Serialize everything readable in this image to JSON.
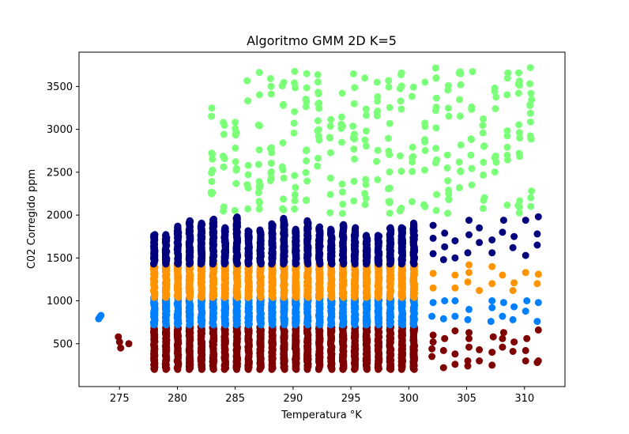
{
  "chart_data": {
    "type": "scatter",
    "title": "Algoritmo GMM 2D K=5",
    "xlabel": "Temperatura °K",
    "ylabel": "C02 Corregido ppm",
    "xlim": [
      271.5,
      313.5
    ],
    "ylim": [
      0,
      3900
    ],
    "xticks": [
      275,
      280,
      285,
      290,
      295,
      300,
      305,
      310
    ],
    "yticks": [
      500,
      1000,
      1500,
      2000,
      2500,
      3000,
      3500
    ],
    "grid": false,
    "legend": "none",
    "marker": "circle",
    "clusters": [
      {
        "color": "#7f0000",
        "description_ranges": {
          "x": [
            274.8,
            311.2
          ],
          "y": [
            200,
            720
          ]
        },
        "dense_x_range": [
          278,
          301
        ],
        "dense_y_range": [
          200,
          700
        ],
        "sparse_points": [
          [
            274.9,
            580
          ],
          [
            275.0,
            520
          ],
          [
            275.1,
            450
          ],
          [
            275.8,
            500
          ],
          [
            302.0,
            350
          ],
          [
            302.0,
            440
          ],
          [
            302.1,
            520
          ],
          [
            302.1,
            600
          ],
          [
            303.0,
            220
          ],
          [
            303.0,
            420
          ],
          [
            303.1,
            560
          ],
          [
            304.0,
            260
          ],
          [
            304.0,
            380
          ],
          [
            304.0,
            650
          ],
          [
            305.1,
            240
          ],
          [
            305.1,
            300
          ],
          [
            305.2,
            460
          ],
          [
            305.2,
            560
          ],
          [
            305.2,
            630
          ],
          [
            306.1,
            300
          ],
          [
            306.1,
            430
          ],
          [
            307.2,
            250
          ],
          [
            307.2,
            400
          ],
          [
            307.3,
            580
          ],
          [
            308.1,
            460
          ],
          [
            308.1,
            560
          ],
          [
            308.2,
            630
          ],
          [
            309.0,
            410
          ],
          [
            309.1,
            520
          ],
          [
            310.1,
            300
          ],
          [
            310.1,
            420
          ],
          [
            310.2,
            560
          ],
          [
            311.1,
            280
          ],
          [
            311.2,
            300
          ],
          [
            311.2,
            660
          ]
        ]
      },
      {
        "color": "#0080ff",
        "description_ranges": {
          "x": [
            273.1,
            311.2
          ],
          "y": [
            720,
            1060
          ]
        },
        "dense_x_range": [
          278,
          301
        ],
        "dense_y_range": [
          720,
          1040
        ],
        "sparse_points": [
          [
            273.2,
            790
          ],
          [
            273.3,
            810
          ],
          [
            273.4,
            830
          ],
          [
            302.0,
            820
          ],
          [
            302.1,
            980
          ],
          [
            303.0,
            790
          ],
          [
            303.1,
            1000
          ],
          [
            304.0,
            820
          ],
          [
            304.0,
            1000
          ],
          [
            305.1,
            780
          ],
          [
            305.2,
            900
          ],
          [
            307.1,
            760
          ],
          [
            307.2,
            920
          ],
          [
            307.2,
            1000
          ],
          [
            308.1,
            820
          ],
          [
            308.2,
            980
          ],
          [
            309.0,
            780
          ],
          [
            309.1,
            930
          ],
          [
            310.1,
            880
          ],
          [
            310.2,
            1000
          ],
          [
            311.1,
            760
          ],
          [
            311.2,
            980
          ]
        ]
      },
      {
        "color": "#ff9400",
        "description_ranges": {
          "x": [
            278,
            311.2
          ],
          "y": [
            1040,
            1440
          ]
        },
        "dense_x_range": [
          278,
          301
        ],
        "dense_y_range": [
          1040,
          1430
        ],
        "sparse_points": [
          [
            302.1,
            1150
          ],
          [
            302.1,
            1320
          ],
          [
            304.0,
            1150
          ],
          [
            304.0,
            1300
          ],
          [
            305.1,
            1220
          ],
          [
            305.2,
            1330
          ],
          [
            305.2,
            1420
          ],
          [
            306.1,
            1120
          ],
          [
            307.2,
            1200
          ],
          [
            307.2,
            1400
          ],
          [
            308.1,
            1300
          ],
          [
            309.0,
            1120
          ],
          [
            309.1,
            1210
          ],
          [
            310.1,
            1330
          ],
          [
            311.1,
            1200
          ],
          [
            311.2,
            1310
          ]
        ]
      },
      {
        "color": "#00007f",
        "description_ranges": {
          "x": [
            278,
            311.2
          ],
          "y": [
            1440,
            2000
          ]
        },
        "dense_x_range": [
          278,
          301
        ],
        "dense_y_range": [
          1430,
          1990
        ],
        "sparse_points": [
          [
            302.1,
            1550
          ],
          [
            302.1,
            1730
          ],
          [
            302.1,
            1880
          ],
          [
            303.0,
            1480
          ],
          [
            303.1,
            1630
          ],
          [
            303.1,
            1790
          ],
          [
            304.0,
            1500
          ],
          [
            304.0,
            1700
          ],
          [
            305.1,
            1560
          ],
          [
            305.2,
            1770
          ],
          [
            305.2,
            1940
          ],
          [
            306.1,
            1680
          ],
          [
            306.1,
            1850
          ],
          [
            307.2,
            1560
          ],
          [
            307.2,
            1710
          ],
          [
            308.1,
            1800
          ],
          [
            308.2,
            1940
          ],
          [
            309.0,
            1620
          ],
          [
            309.1,
            1750
          ],
          [
            310.1,
            1530
          ],
          [
            310.1,
            1940
          ],
          [
            311.1,
            1650
          ],
          [
            311.1,
            1780
          ],
          [
            311.2,
            1980
          ]
        ]
      },
      {
        "color": "#7cff79",
        "description_ranges": {
          "x": [
            283,
            311.2
          ],
          "y": [
            2000,
            3760
          ]
        },
        "dense_x_range": [
          283,
          311
        ],
        "dense_y_range": [
          2010,
          3720
        ],
        "sparse_points": []
      }
    ]
  }
}
